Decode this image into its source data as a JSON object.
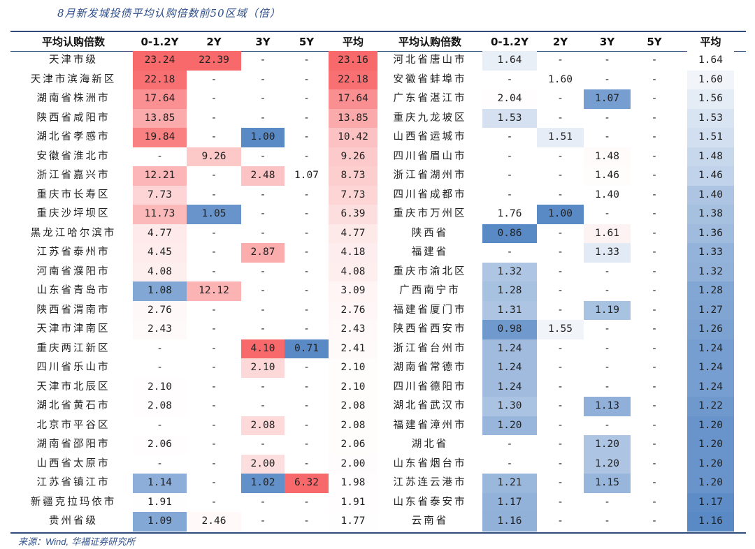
{
  "title": "8月新发城投债平均认购倍数前50区域（倍）",
  "source": {
    "prefix": "来源：",
    "wind": "Wind,",
    "org": " 华福证券研究所"
  },
  "headers": [
    "平均认购倍数",
    "0-1.2Y",
    "2Y",
    "3Y",
    "5Y",
    "平均"
  ],
  "left_rows": [
    [
      "天津市级",
      "23.24",
      "22.39",
      "-",
      "-",
      "23.16"
    ],
    [
      "天津市滨海新区",
      "22.18",
      "-",
      "-",
      "-",
      "22.18"
    ],
    [
      "湖南省株洲市",
      "17.64",
      "-",
      "-",
      "-",
      "17.64"
    ],
    [
      "陕西省咸阳市",
      "13.85",
      "-",
      "-",
      "-",
      "13.85"
    ],
    [
      "湖北省孝感市",
      "19.84",
      "-",
      "1.00",
      "-",
      "10.42"
    ],
    [
      "安徽省淮北市",
      "-",
      "9.26",
      "-",
      "-",
      "9.26"
    ],
    [
      "浙江省嘉兴市",
      "12.21",
      "-",
      "2.48",
      "1.07",
      "8.73"
    ],
    [
      "重庆市长寿区",
      "7.73",
      "-",
      "-",
      "-",
      "7.73"
    ],
    [
      "重庆沙坪坝区",
      "11.73",
      "1.05",
      "-",
      "-",
      "6.39"
    ],
    [
      "黑龙江哈尔滨市",
      "4.77",
      "-",
      "-",
      "-",
      "4.77"
    ],
    [
      "江苏省泰州市",
      "4.45",
      "-",
      "2.87",
      "-",
      "4.18"
    ],
    [
      "河南省濮阳市",
      "4.08",
      "-",
      "-",
      "-",
      "4.08"
    ],
    [
      "山东省青岛市",
      "1.08",
      "12.12",
      "-",
      "-",
      "3.09"
    ],
    [
      "陕西省渭南市",
      "2.76",
      "-",
      "-",
      "-",
      "2.76"
    ],
    [
      "天津市津南区",
      "2.43",
      "-",
      "-",
      "-",
      "2.43"
    ],
    [
      "重庆两江新区",
      "-",
      "-",
      "4.10",
      "0.71",
      "2.41"
    ],
    [
      "四川省乐山市",
      "-",
      "-",
      "2.10",
      "-",
      "2.10"
    ],
    [
      "天津市北辰区",
      "2.10",
      "-",
      "-",
      "-",
      "2.10"
    ],
    [
      "湖北省黄石市",
      "2.08",
      "-",
      "-",
      "-",
      "2.08"
    ],
    [
      "北京市平谷区",
      "-",
      "-",
      "2.08",
      "-",
      "2.08"
    ],
    [
      "湖南省邵阳市",
      "2.06",
      "-",
      "-",
      "-",
      "2.06"
    ],
    [
      "山西省太原市",
      "-",
      "-",
      "2.00",
      "-",
      "2.00"
    ],
    [
      "江苏省镇江市",
      "1.14",
      "-",
      "1.02",
      "6.32",
      "1.98"
    ],
    [
      "新疆克拉玛依市",
      "1.91",
      "-",
      "-",
      "-",
      "1.91"
    ],
    [
      "贵州省级",
      "1.09",
      "2.46",
      "-",
      "-",
      "1.77"
    ]
  ],
  "right_rows": [
    [
      "河北省唐山市",
      "1.64",
      "-",
      "-",
      "-",
      "1.64"
    ],
    [
      "安徽省蚌埠市",
      "-",
      "1.60",
      "-",
      "-",
      "1.60"
    ],
    [
      "广东省湛江市",
      "2.04",
      "-",
      "1.07",
      "-",
      "1.56"
    ],
    [
      "重庆九龙坡区",
      "1.53",
      "-",
      "-",
      "-",
      "1.53"
    ],
    [
      "山西省运城市",
      "-",
      "1.51",
      "-",
      "-",
      "1.51"
    ],
    [
      "四川省眉山市",
      "-",
      "-",
      "1.48",
      "-",
      "1.48"
    ],
    [
      "浙江省湖州市",
      "-",
      "-",
      "1.46",
      "-",
      "1.46"
    ],
    [
      "四川省成都市",
      "-",
      "-",
      "1.40",
      "-",
      "1.40"
    ],
    [
      "重庆市万州区",
      "1.76",
      "1.00",
      "-",
      "-",
      "1.38"
    ],
    [
      "陕西省",
      "0.86",
      "-",
      "1.61",
      "-",
      "1.36"
    ],
    [
      "福建省",
      "-",
      "-",
      "1.33",
      "-",
      "1.33"
    ],
    [
      "重庆市渝北区",
      "1.32",
      "-",
      "-",
      "-",
      "1.32"
    ],
    [
      "广西南宁市",
      "1.28",
      "-",
      "-",
      "-",
      "1.28"
    ],
    [
      "福建省厦门市",
      "1.31",
      "-",
      "1.19",
      "-",
      "1.27"
    ],
    [
      "陕西省西安市",
      "0.98",
      "1.55",
      "-",
      "-",
      "1.26"
    ],
    [
      "浙江省台州市",
      "1.24",
      "-",
      "-",
      "-",
      "1.24"
    ],
    [
      "湖南省常德市",
      "1.24",
      "-",
      "-",
      "-",
      "1.24"
    ],
    [
      "四川省德阳市",
      "1.24",
      "-",
      "-",
      "-",
      "1.24"
    ],
    [
      "湖北省武汉市",
      "1.30",
      "-",
      "1.13",
      "-",
      "1.22"
    ],
    [
      "福建省漳州市",
      "1.20",
      "-",
      "-",
      "-",
      "1.20"
    ],
    [
      "湖北省",
      "-",
      "-",
      "1.20",
      "-",
      "1.20"
    ],
    [
      "山东省烟台市",
      "-",
      "-",
      "1.20",
      "-",
      "1.20"
    ],
    [
      "江苏连云港市",
      "1.21",
      "-",
      "1.15",
      "-",
      "1.20"
    ],
    [
      "山东省泰安市",
      "1.17",
      "-",
      "-",
      "-",
      "1.17"
    ],
    [
      "云南省",
      "1.16",
      "-",
      "-",
      "-",
      "1.16"
    ]
  ],
  "colors": {
    "high": "#f8696b",
    "mid": "#ffffff",
    "low": "#5a8ac6",
    "rule": "#2e4a78",
    "title": "#2e4e8a"
  }
}
